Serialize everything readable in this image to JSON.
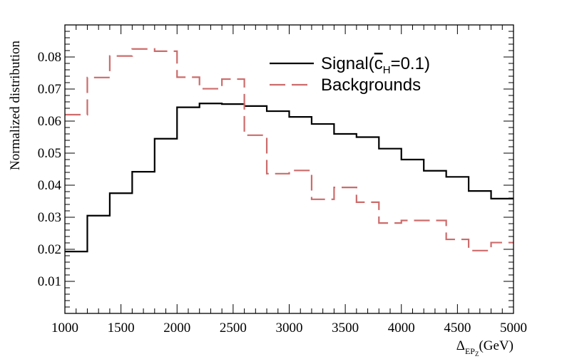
{
  "chart_data": {
    "type": "line",
    "style": "step-histogram",
    "xlabel_main": "Δ",
    "xlabel_sub": "EP",
    "xlabel_subsub": "Z",
    "xlabel_unit": "(GeV)",
    "ylabel": "Normalized distribution",
    "xlim": [
      1000,
      5000
    ],
    "ylim": [
      0,
      0.09
    ],
    "x_ticks": [
      1000,
      1500,
      2000,
      2500,
      3000,
      3500,
      4000,
      4500,
      5000
    ],
    "y_ticks": [
      0.01,
      0.02,
      0.03,
      0.04,
      0.05,
      0.06,
      0.07,
      0.08
    ],
    "y_tick_labels": [
      "0.01",
      "0.02",
      "0.03",
      "0.04",
      "0.05",
      "0.06",
      "0.07",
      "0.08"
    ],
    "bin_edges": [
      1000,
      1200,
      1400,
      1600,
      1800,
      2000,
      2200,
      2400,
      2600,
      2800,
      3000,
      3200,
      3400,
      3600,
      3800,
      4000,
      4200,
      4400,
      4600,
      4800,
      5000
    ],
    "series": [
      {
        "name": "Signal",
        "legend_main": "Signal(",
        "legend_sym": "c",
        "legend_sub": "H",
        "legend_tail": "=0.1)",
        "color": "#000000",
        "dash": "solid",
        "values": [
          0.0193,
          0.0305,
          0.0375,
          0.0442,
          0.0545,
          0.0643,
          0.0655,
          0.0653,
          0.0647,
          0.0631,
          0.0613,
          0.0591,
          0.056,
          0.055,
          0.0514,
          0.048,
          0.0445,
          0.0426,
          0.0382,
          0.0358
        ]
      },
      {
        "name": "Backgrounds",
        "legend_main": "Backgrounds",
        "color": "#cd6b6b",
        "dash": "dashed",
        "values": [
          0.062,
          0.0736,
          0.0803,
          0.0825,
          0.0818,
          0.0737,
          0.0701,
          0.0731,
          0.0556,
          0.0436,
          0.0446,
          0.0356,
          0.0393,
          0.0347,
          0.0282,
          0.029,
          0.029,
          0.0231,
          0.0196,
          0.0221
        ]
      }
    ]
  }
}
